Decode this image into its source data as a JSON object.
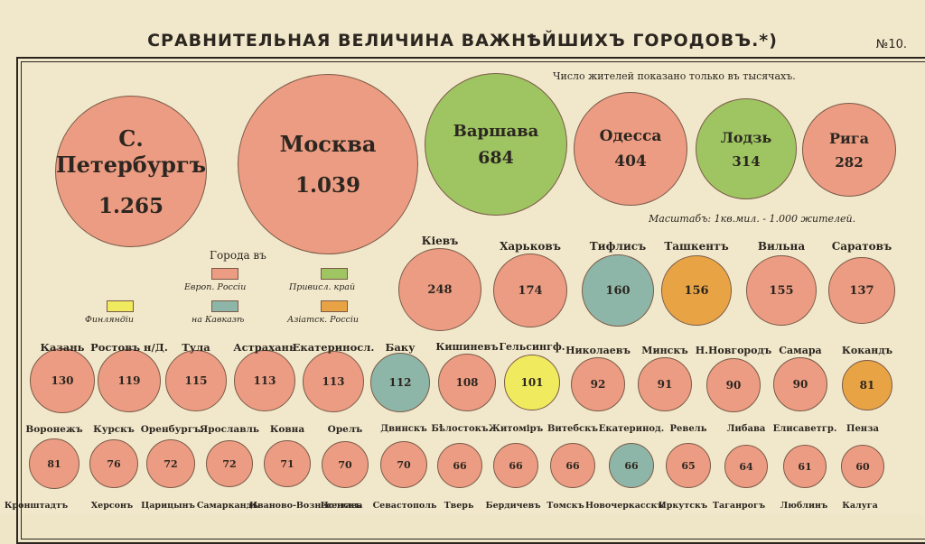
{
  "header": {
    "title": "СРАВНИТЕЛЬНАЯ ВЕЛИЧИНА ВАЖНѢЙШИХЪ ГОРОДОВЪ.*)",
    "plate_number": "№10.",
    "population_note": "Число жителей показано только въ тысячахъ.",
    "scale_note": "Масштабъ: 1кв.мил. - 1.000 жителей."
  },
  "legend": {
    "title": "Города въ",
    "items": [
      {
        "label": "Европ. Россіи",
        "color": "#ec9c82"
      },
      {
        "label": "Привисл. край",
        "color": "#9ec562"
      },
      {
        "label": "Финляндіи",
        "color": "#f0ea5e"
      },
      {
        "label": "на Кавказѣ",
        "color": "#8eb6a8"
      },
      {
        "label": "Азіатск. Россіи",
        "color": "#e8a444"
      }
    ]
  },
  "colors": {
    "european_russia": "#ec9c82",
    "vistula": "#9ec562",
    "finland": "#f0ea5e",
    "caucasus": "#8eb6a8",
    "asiatic_russia": "#e8a444",
    "paper": "#f1e8cb",
    "ink": "#2c2620"
  },
  "chart_data": {
    "type": "bubble",
    "title": "СРАВНИТЕЛЬНАЯ ВЕЛИЧИНА ВАЖНѢЙШИХЪ ГОРОДОВЪ.*)",
    "unit": "тысячи жителей",
    "cities": [
      {
        "name": "С. Петербургъ",
        "value": "1.265",
        "region": "european_russia"
      },
      {
        "name": "Москва",
        "value": "1.039",
        "region": "european_russia"
      },
      {
        "name": "Варшава",
        "value": "684",
        "region": "vistula"
      },
      {
        "name": "Одесса",
        "value": "404",
        "region": "european_russia"
      },
      {
        "name": "Лодзь",
        "value": "314",
        "region": "vistula"
      },
      {
        "name": "Рига",
        "value": "282",
        "region": "european_russia"
      },
      {
        "name": "Кіевъ",
        "value": "248",
        "region": "european_russia"
      },
      {
        "name": "Харьковъ",
        "value": "174",
        "region": "european_russia"
      },
      {
        "name": "Тифлисъ",
        "value": "160",
        "region": "caucasus"
      },
      {
        "name": "Ташкентъ",
        "value": "156",
        "region": "asiatic_russia"
      },
      {
        "name": "Вильна",
        "value": "155",
        "region": "european_russia"
      },
      {
        "name": "Саратовъ",
        "value": "137",
        "region": "european_russia"
      },
      {
        "name": "Казань",
        "value": "130",
        "region": "european_russia"
      },
      {
        "name": "Ростовъ н/Д.",
        "value": "119",
        "region": "european_russia"
      },
      {
        "name": "Тула",
        "value": "115",
        "region": "european_russia"
      },
      {
        "name": "Астрахань",
        "value": "113",
        "region": "european_russia"
      },
      {
        "name": "Екатериносл.",
        "value": "113",
        "region": "european_russia"
      },
      {
        "name": "Баку",
        "value": "112",
        "region": "caucasus"
      },
      {
        "name": "Кишиневъ",
        "value": "108",
        "region": "european_russia"
      },
      {
        "name": "Гельсингф.",
        "value": "101",
        "region": "finland"
      },
      {
        "name": "Николаевъ",
        "value": "92",
        "region": "european_russia"
      },
      {
        "name": "Минскъ",
        "value": "91",
        "region": "european_russia"
      },
      {
        "name": "Н.Новгородъ",
        "value": "90",
        "region": "european_russia"
      },
      {
        "name": "Самара",
        "value": "90",
        "region": "european_russia"
      },
      {
        "name": "Кокандъ",
        "value": "81",
        "region": "asiatic_russia"
      },
      {
        "name": "Воронежъ",
        "value": "81",
        "region": "european_russia"
      },
      {
        "name": "Курскъ",
        "value": "76",
        "region": "european_russia"
      },
      {
        "name": "Оренбургъ",
        "value": "72",
        "region": "european_russia"
      },
      {
        "name": "Ярославль",
        "value": "72",
        "region": "european_russia"
      },
      {
        "name": "Ковна",
        "value": "71",
        "region": "european_russia"
      },
      {
        "name": "Орелъ",
        "value": "70",
        "region": "european_russia"
      },
      {
        "name": "Двинскъ",
        "value": "70",
        "region": "european_russia"
      },
      {
        "name": "Бѣлостокъ",
        "value": "66",
        "region": "european_russia"
      },
      {
        "name": "Житоміръ",
        "value": "66",
        "region": "european_russia"
      },
      {
        "name": "Витебскъ",
        "value": "66",
        "region": "european_russia"
      },
      {
        "name": "Екатеринод.",
        "value": "66",
        "region": "caucasus"
      },
      {
        "name": "Ревель",
        "value": "65",
        "region": "european_russia"
      },
      {
        "name": "Либава",
        "value": "64",
        "region": "european_russia"
      },
      {
        "name": "Елисаветгр.",
        "value": "61",
        "region": "european_russia"
      },
      {
        "name": "Пенза",
        "value": "60",
        "region": "european_russia"
      }
    ],
    "partial_row_labels": [
      "Кронштадтъ",
      "Херсонъ",
      "Царицынъ",
      "Самаркандъ",
      "Иваново-Вознесенскъ",
      "Полтава",
      "Севастополь",
      "Тверь",
      "Бердичевъ",
      "Томскъ",
      "Новочеркасскъ",
      "Иркутскъ",
      "Таганрогъ",
      "Люблинъ",
      "Калуга"
    ]
  }
}
